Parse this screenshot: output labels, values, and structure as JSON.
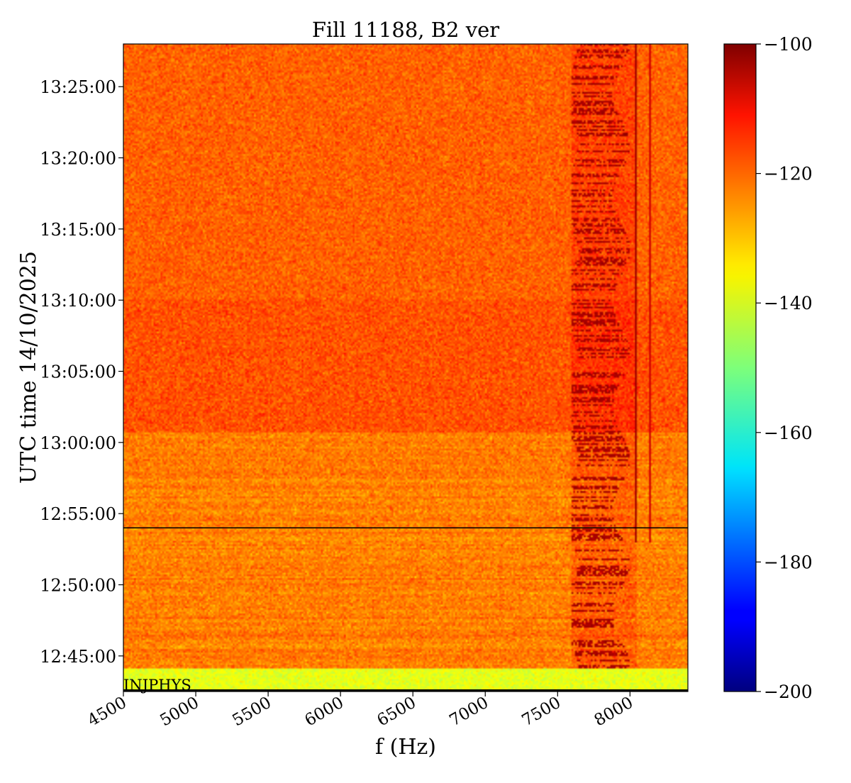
{
  "chart_data": {
    "type": "heatmap",
    "title": "Fill 11188, B2 ver",
    "xlabel": "f (Hz)",
    "ylabel": "UTC time 14/10/2025",
    "xlim": [
      4500,
      8400
    ],
    "x_ticks": [
      4500,
      5000,
      5500,
      6000,
      6500,
      7000,
      7500,
      8000
    ],
    "ylim": [
      "12:42:30",
      "13:28:00"
    ],
    "y_ticks": [
      "12:45:00",
      "12:50:00",
      "12:55:00",
      "13:00:00",
      "13:05:00",
      "13:10:00",
      "13:15:00",
      "13:20:00",
      "13:25:00"
    ],
    "colorbar": {
      "colormap": "jet",
      "range": [
        -200,
        -100
      ],
      "ticks": [
        -100,
        -120,
        -140,
        -160,
        -180,
        -200
      ],
      "tick_labels": [
        "−100",
        "−120",
        "−140",
        "−160",
        "−180",
        "−200"
      ]
    },
    "annotation": "INJPHYS",
    "horizontal_line_time": "12:54:00",
    "features": {
      "strong_line_frequencies": [
        8040,
        8140
      ],
      "high_activity_band": [
        7600,
        8050
      ],
      "background_level": -122
    }
  }
}
